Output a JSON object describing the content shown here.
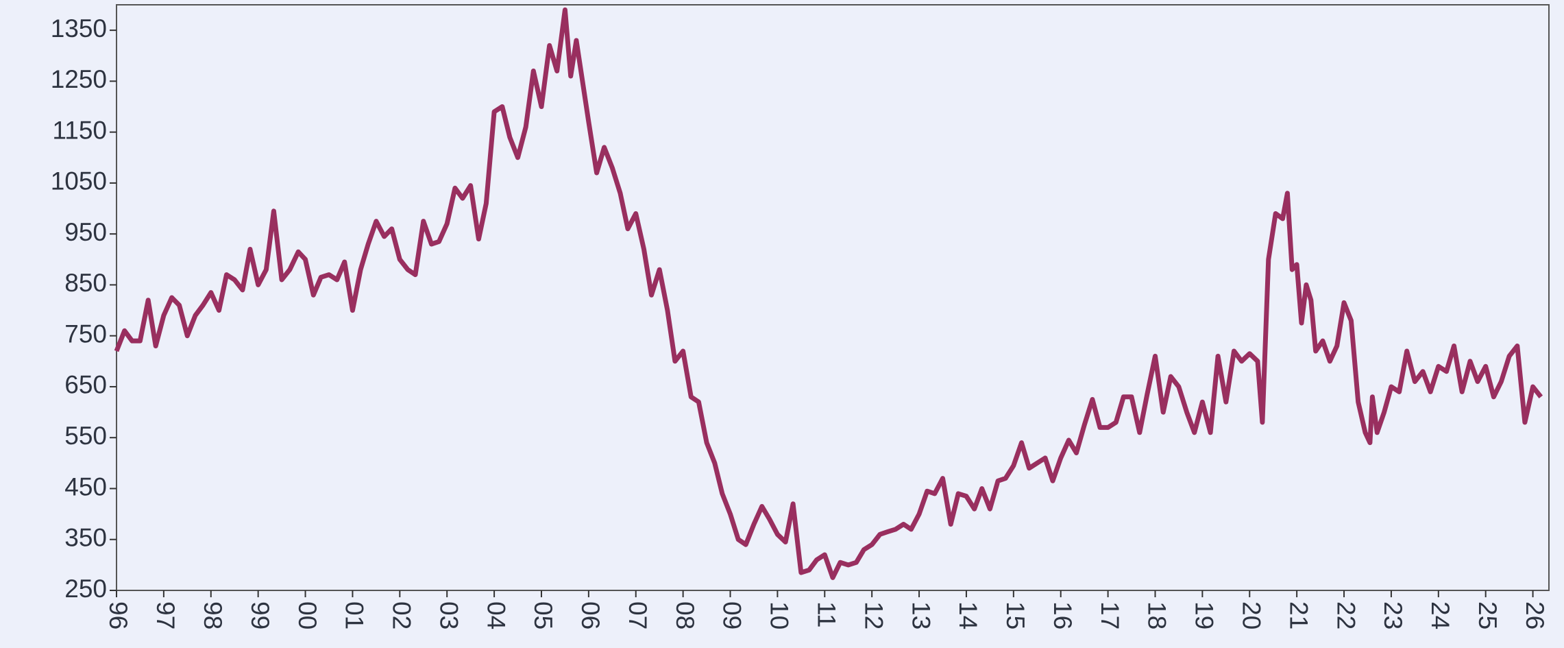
{
  "chart_data": {
    "type": "line",
    "color": "#992f5f",
    "grid": false,
    "xlim": [
      1996,
      2026.34
    ],
    "ylim": [
      250,
      1400
    ],
    "yticks": [
      250,
      350,
      450,
      550,
      650,
      750,
      850,
      950,
      1050,
      1150,
      1250,
      1350
    ],
    "xticks": [
      {
        "value": 1996,
        "label": "96"
      },
      {
        "value": 1997,
        "label": "97"
      },
      {
        "value": 1998,
        "label": "98"
      },
      {
        "value": 1999,
        "label": "99"
      },
      {
        "value": 2000,
        "label": "00"
      },
      {
        "value": 2001,
        "label": "01"
      },
      {
        "value": 2002,
        "label": "02"
      },
      {
        "value": 2003,
        "label": "03"
      },
      {
        "value": 2004,
        "label": "04"
      },
      {
        "value": 2005,
        "label": "05"
      },
      {
        "value": 2006,
        "label": "06"
      },
      {
        "value": 2007,
        "label": "07"
      },
      {
        "value": 2008,
        "label": "08"
      },
      {
        "value": 2009,
        "label": "09"
      },
      {
        "value": 2010,
        "label": "10"
      },
      {
        "value": 2011,
        "label": "11"
      },
      {
        "value": 2012,
        "label": "12"
      },
      {
        "value": 2013,
        "label": "13"
      },
      {
        "value": 2014,
        "label": "14"
      },
      {
        "value": 2015,
        "label": "15"
      },
      {
        "value": 2016,
        "label": "16"
      },
      {
        "value": 2017,
        "label": "17"
      },
      {
        "value": 2018,
        "label": "18"
      },
      {
        "value": 2019,
        "label": "19"
      },
      {
        "value": 2020,
        "label": "20"
      },
      {
        "value": 2021,
        "label": "21"
      },
      {
        "value": 2022,
        "label": "22"
      },
      {
        "value": 2023,
        "label": "23"
      },
      {
        "value": 2024,
        "label": "24"
      },
      {
        "value": 2025,
        "label": "25"
      },
      {
        "value": 2026,
        "label": "26"
      }
    ],
    "x": [
      1996.0,
      1996.17,
      1996.33,
      1996.5,
      1996.67,
      1996.83,
      1997.0,
      1997.17,
      1997.33,
      1997.5,
      1997.67,
      1997.83,
      1998.0,
      1998.17,
      1998.33,
      1998.5,
      1998.67,
      1998.83,
      1999.0,
      1999.17,
      1999.33,
      1999.5,
      1999.67,
      1999.85,
      2000.0,
      2000.17,
      2000.33,
      2000.5,
      2000.67,
      2000.83,
      2001.0,
      2001.17,
      2001.33,
      2001.5,
      2001.67,
      2001.83,
      2002.0,
      2002.17,
      2002.33,
      2002.5,
      2002.67,
      2002.83,
      2003.0,
      2003.17,
      2003.33,
      2003.5,
      2003.67,
      2003.83,
      2004.0,
      2004.17,
      2004.33,
      2004.5,
      2004.67,
      2004.83,
      2005.0,
      2005.17,
      2005.33,
      2005.5,
      2005.62,
      2005.74,
      2006.0,
      2006.17,
      2006.33,
      2006.5,
      2006.67,
      2006.83,
      2007.0,
      2007.17,
      2007.33,
      2007.5,
      2007.67,
      2007.83,
      2008.0,
      2008.17,
      2008.33,
      2008.5,
      2008.67,
      2008.83,
      2009.0,
      2009.17,
      2009.33,
      2009.5,
      2009.67,
      2009.83,
      2010.0,
      2010.17,
      2010.33,
      2010.5,
      2010.67,
      2010.83,
      2011.0,
      2011.17,
      2011.33,
      2011.5,
      2011.67,
      2011.83,
      2012.0,
      2012.17,
      2012.33,
      2012.5,
      2012.67,
      2012.83,
      2013.0,
      2013.17,
      2013.33,
      2013.5,
      2013.67,
      2013.83,
      2014.0,
      2014.17,
      2014.33,
      2014.5,
      2014.67,
      2014.83,
      2015.0,
      2015.17,
      2015.33,
      2015.5,
      2015.67,
      2015.83,
      2016.0,
      2016.17,
      2016.33,
      2016.5,
      2016.67,
      2016.83,
      2017.0,
      2017.17,
      2017.33,
      2017.5,
      2017.67,
      2017.83,
      2018.0,
      2018.17,
      2018.33,
      2018.5,
      2018.67,
      2018.83,
      2019.0,
      2019.17,
      2019.33,
      2019.5,
      2019.67,
      2019.83,
      2020.0,
      2020.17,
      2020.27,
      2020.4,
      2020.55,
      2020.7,
      2020.8,
      2020.9,
      2021.0,
      2021.1,
      2021.2,
      2021.3,
      2021.4,
      2021.55,
      2021.7,
      2021.85,
      2022.0,
      2022.15,
      2022.3,
      2022.45,
      2022.55,
      2022.6,
      2022.7,
      2022.85,
      2023.0,
      2023.17,
      2023.33,
      2023.5,
      2023.67,
      2023.83,
      2024.0,
      2024.17,
      2024.33,
      2024.5,
      2024.67,
      2024.83,
      2025.0,
      2025.17,
      2025.33,
      2025.5,
      2025.67,
      2025.83,
      2026.0,
      2026.17
    ],
    "series": [
      {
        "values": [
          720,
          760,
          740,
          740,
          820,
          730,
          790,
          825,
          810,
          750,
          790,
          810,
          835,
          800,
          870,
          860,
          840,
          920,
          850,
          880,
          995,
          860,
          880,
          915,
          900,
          830,
          865,
          870,
          860,
          895,
          800,
          880,
          930,
          975,
          945,
          960,
          900,
          880,
          870,
          975,
          930,
          935,
          970,
          1040,
          1020,
          1045,
          940,
          1010,
          1190,
          1200,
          1140,
          1100,
          1160,
          1270,
          1200,
          1320,
          1270,
          1390,
          1260,
          1330,
          1170,
          1070,
          1120,
          1080,
          1030,
          960,
          990,
          920,
          830,
          880,
          800,
          700,
          720,
          630,
          620,
          540,
          500,
          440,
          400,
          350,
          340,
          380,
          415,
          390,
          360,
          345,
          420,
          285,
          290,
          310,
          320,
          275,
          305,
          300,
          305,
          330,
          340,
          360,
          365,
          370,
          380,
          370,
          400,
          445,
          440,
          470,
          380,
          440,
          435,
          410,
          450,
          410,
          465,
          470,
          495,
          540,
          490,
          500,
          510,
          465,
          510,
          545,
          520,
          575,
          625,
          570,
          570,
          580,
          630,
          630,
          560,
          635,
          710,
          600,
          670,
          650,
          600,
          560,
          620,
          560,
          710,
          620,
          720,
          700,
          715,
          700,
          580,
          900,
          990,
          980,
          1030,
          880,
          890,
          775,
          850,
          820,
          720,
          740,
          700,
          730,
          815,
          780,
          620,
          560,
          540,
          630,
          560,
          600,
          650,
          640,
          720,
          660,
          680,
          640,
          690,
          680,
          730,
          640,
          700,
          660,
          690,
          630,
          660,
          710,
          730,
          580,
          650,
          630
        ]
      }
    ]
  }
}
